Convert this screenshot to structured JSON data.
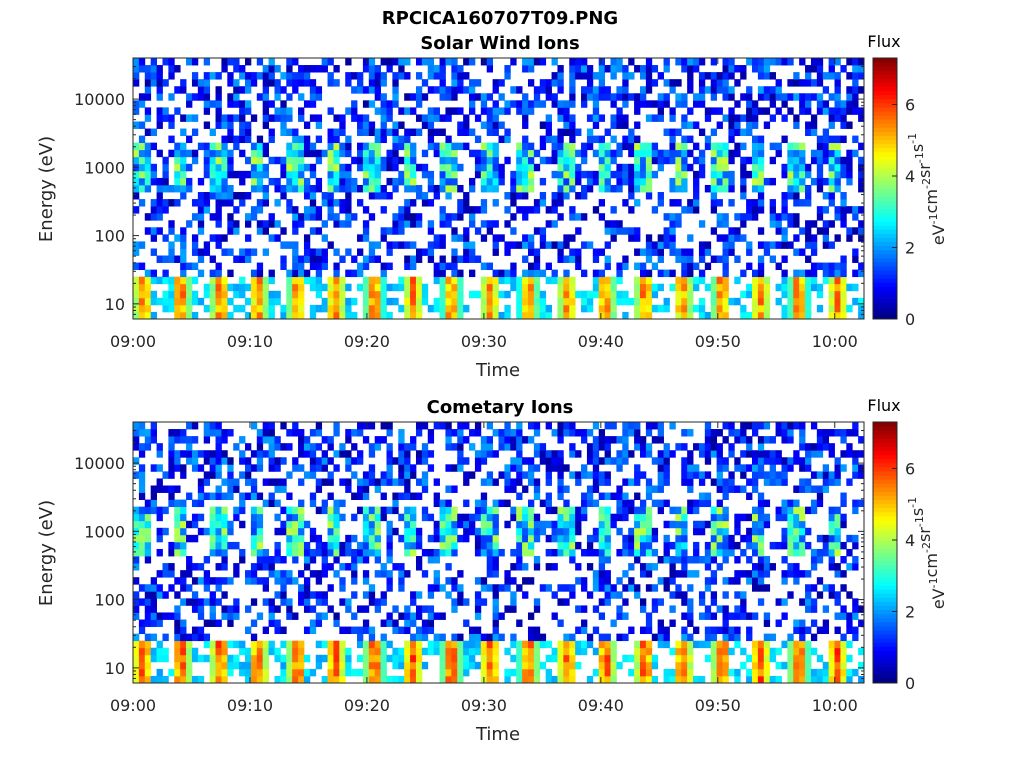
{
  "figure": {
    "title": "RPCICA160707T09.PNG"
  },
  "panels": [
    {
      "title": "Solar Wind Ions",
      "xlabel": "Time",
      "ylabel": "Energy (eV)",
      "colorbar_title": "Flux",
      "colorbar_unit_parts": [
        "eV",
        "-1",
        "cm",
        "-2",
        "sr",
        "-1",
        "s",
        "-1"
      ]
    },
    {
      "title": "Cometary Ions",
      "xlabel": "Time",
      "ylabel": "Energy (eV)",
      "colorbar_title": "Flux",
      "colorbar_unit_parts": [
        "eV",
        "-1",
        "cm",
        "-2",
        "sr",
        "-1",
        "s",
        "-1"
      ]
    }
  ],
  "chart_data": [
    {
      "type": "heatmap",
      "title": "Solar Wind Ions",
      "xlabel": "Time",
      "ylabel": "Energy (eV)",
      "x_ticks": [
        "09:00",
        "09:10",
        "09:20",
        "09:30",
        "09:40",
        "09:50",
        "10:00"
      ],
      "x_tick_minutes": [
        0,
        10,
        20,
        30,
        40,
        50,
        60
      ],
      "xlim_minutes": [
        0,
        62.5
      ],
      "y_scale": "log",
      "y_ticks": [
        10,
        100,
        1000,
        10000
      ],
      "y_tick_labels": [
        "10",
        "100",
        "1000",
        "10000"
      ],
      "ylim": [
        6,
        40000
      ],
      "colorbar": {
        "label": "Flux",
        "colormap": "jet",
        "range": [
          0,
          7.3
        ],
        "ticks": [
          0,
          2,
          4,
          6
        ],
        "tick_labels": [
          "0",
          "2",
          "4",
          "6"
        ]
      },
      "grid": false,
      "pattern": {
        "sweep_period_minutes": 3.3,
        "energy_bands": [
          {
            "energy_range_eV": [
              6,
              30
            ],
            "flux_range": [
              2.5,
              6.2
            ],
            "description_of_values": "strong periodic low-energy band"
          },
          {
            "energy_range_eV": [
              500,
              2000
            ],
            "flux_range": [
              1.5,
              4.5
            ],
            "description_of_values": "periodic mid-energy band"
          },
          {
            "energy_range_eV": [
              30,
              40000
            ],
            "flux_range": [
              0.2,
              2.2
            ],
            "description_of_values": "sparse background"
          }
        ]
      }
    },
    {
      "type": "heatmap",
      "title": "Cometary Ions",
      "xlabel": "Time",
      "ylabel": "Energy (eV)",
      "x_ticks": [
        "09:00",
        "09:10",
        "09:20",
        "09:30",
        "09:40",
        "09:50",
        "10:00"
      ],
      "x_tick_minutes": [
        0,
        10,
        20,
        30,
        40,
        50,
        60
      ],
      "xlim_minutes": [
        0,
        62.5
      ],
      "y_scale": "log",
      "y_ticks": [
        10,
        100,
        1000,
        10000
      ],
      "y_tick_labels": [
        "10",
        "100",
        "1000",
        "10000"
      ],
      "ylim": [
        6,
        40000
      ],
      "colorbar": {
        "label": "Flux",
        "colormap": "jet",
        "range": [
          0,
          7.3
        ],
        "ticks": [
          0,
          2,
          4,
          6
        ],
        "tick_labels": [
          "0",
          "2",
          "4",
          "6"
        ]
      },
      "grid": false,
      "pattern": {
        "sweep_period_minutes": 3.3,
        "energy_bands": [
          {
            "energy_range_eV": [
              6,
              30
            ],
            "flux_range": [
              2.5,
              6.5
            ],
            "description_of_values": "strong periodic low-energy band"
          },
          {
            "energy_range_eV": [
              500,
              2000
            ],
            "flux_range": [
              1.2,
              4.2
            ],
            "description_of_values": "periodic mid-energy band"
          },
          {
            "energy_range_eV": [
              30,
              40000
            ],
            "flux_range": [
              0.2,
              2.2
            ],
            "description_of_values": "sparse background"
          }
        ]
      }
    }
  ]
}
